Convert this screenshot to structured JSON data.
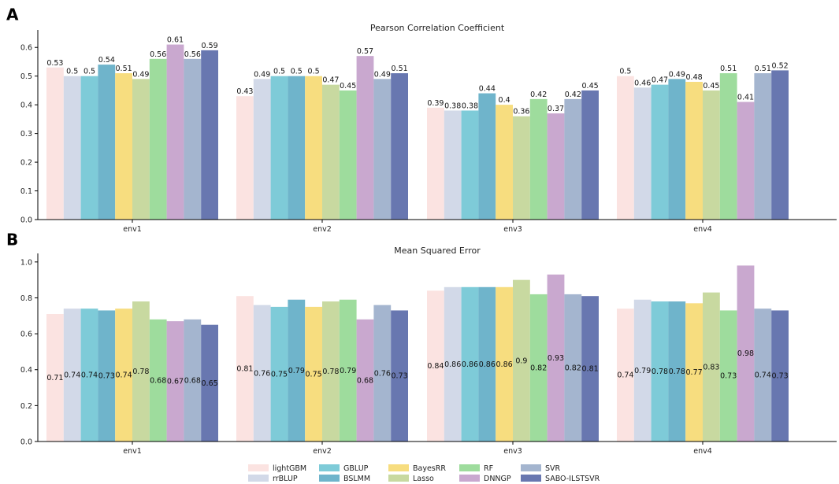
{
  "chart_data": [
    {
      "type": "bar",
      "panel_label": "A",
      "title": "Pearson Correlation Coefficient",
      "xlabel": "",
      "ylabel": "",
      "ylim": [
        0,
        0.65
      ],
      "yticks": [
        "0.0",
        "0.1",
        "0.2",
        "0.3",
        "0.4",
        "0.5",
        "0.6"
      ],
      "value_label_position": "top",
      "categories": [
        "env1",
        "env2",
        "env3",
        "env4"
      ],
      "series": [
        {
          "name": "lightGBM",
          "values": [
            0.53,
            0.43,
            0.39,
            0.5
          ],
          "labels": [
            "0.53",
            "0.43",
            "0.39",
            "0.5"
          ]
        },
        {
          "name": "rrBLUP",
          "values": [
            0.5,
            0.49,
            0.38,
            0.46
          ],
          "labels": [
            "0.5",
            "0.49",
            "0.38",
            "0.46"
          ]
        },
        {
          "name": "GBLUP",
          "values": [
            0.5,
            0.5,
            0.38,
            0.47
          ],
          "labels": [
            "0.5",
            "0.5",
            "0.38",
            "0.47"
          ]
        },
        {
          "name": "BSLMM",
          "values": [
            0.54,
            0.5,
            0.44,
            0.49
          ],
          "labels": [
            "0.54",
            "0.5",
            "0.44",
            "0.49"
          ]
        },
        {
          "name": "BayesRR",
          "values": [
            0.51,
            0.5,
            0.4,
            0.48
          ],
          "labels": [
            "0.51",
            "0.5",
            "0.4",
            "0.48"
          ]
        },
        {
          "name": "Lasso",
          "values": [
            0.49,
            0.47,
            0.36,
            0.45
          ],
          "labels": [
            "0.49",
            "0.47",
            "0.36",
            "0.45"
          ]
        },
        {
          "name": "RF",
          "values": [
            0.56,
            0.45,
            0.42,
            0.51
          ],
          "labels": [
            "0.56",
            "0.45",
            "0.42",
            "0.51"
          ]
        },
        {
          "name": "DNNGP",
          "values": [
            0.61,
            0.57,
            0.37,
            0.41
          ],
          "labels": [
            "0.61",
            "0.57",
            "0.37",
            "0.41"
          ]
        },
        {
          "name": "SVR",
          "values": [
            0.56,
            0.49,
            0.42,
            0.51
          ],
          "labels": [
            "0.56",
            "0.49",
            "0.42",
            "0.51"
          ]
        },
        {
          "name": "SABO-ILSTSVR",
          "values": [
            0.59,
            0.51,
            0.45,
            0.52
          ],
          "labels": [
            "0.59",
            "0.51",
            "0.45",
            "0.52"
          ]
        }
      ]
    },
    {
      "type": "bar",
      "panel_label": "B",
      "title": "Mean Squared Error",
      "xlabel": "",
      "ylabel": "",
      "ylim": [
        0,
        1.03
      ],
      "yticks": [
        "0.0",
        "0.2",
        "0.4",
        "0.6",
        "0.8",
        "1.0"
      ],
      "value_label_position": "middle",
      "categories": [
        "env1",
        "env2",
        "env3",
        "env4"
      ],
      "series": [
        {
          "name": "lightGBM",
          "values": [
            0.71,
            0.81,
            0.84,
            0.74
          ],
          "labels": [
            "0.71",
            "0.81",
            "0.84",
            "0.74"
          ]
        },
        {
          "name": "rrBLUP",
          "values": [
            0.74,
            0.76,
            0.86,
            0.79
          ],
          "labels": [
            "0.74",
            "0.76",
            "0.86",
            "0.79"
          ]
        },
        {
          "name": "GBLUP",
          "values": [
            0.74,
            0.75,
            0.86,
            0.78
          ],
          "labels": [
            "0.74",
            "0.75",
            "0.86",
            "0.78"
          ]
        },
        {
          "name": "BSLMM",
          "values": [
            0.73,
            0.79,
            0.86,
            0.78
          ],
          "labels": [
            "0.73",
            "0.79",
            "0.86",
            "0.78"
          ]
        },
        {
          "name": "BayesRR",
          "values": [
            0.74,
            0.75,
            0.86,
            0.77
          ],
          "labels": [
            "0.74",
            "0.75",
            "0.86",
            "0.77"
          ]
        },
        {
          "name": "Lasso",
          "values": [
            0.78,
            0.78,
            0.9,
            0.83
          ],
          "labels": [
            "0.78",
            "0.78",
            "0.9",
            "0.83"
          ]
        },
        {
          "name": "RF",
          "values": [
            0.68,
            0.79,
            0.82,
            0.73
          ],
          "labels": [
            "0.68",
            "0.79",
            "0.82",
            "0.73"
          ]
        },
        {
          "name": "DNNGP",
          "values": [
            0.67,
            0.68,
            0.93,
            0.98
          ],
          "labels": [
            "0.67",
            "0.68",
            "0.93",
            "0.98"
          ]
        },
        {
          "name": "SVR",
          "values": [
            0.68,
            0.76,
            0.82,
            0.74
          ],
          "labels": [
            "0.68",
            "0.76",
            "0.82",
            "0.74"
          ]
        },
        {
          "name": "SABO-ILSTSVR",
          "values": [
            0.65,
            0.73,
            0.81,
            0.73
          ],
          "labels": [
            "0.65",
            "0.73",
            "0.81",
            "0.73"
          ]
        }
      ]
    }
  ],
  "legend": {
    "placement": "bottom-center",
    "items": [
      "lightGBM",
      "rrBLUP",
      "GBLUP",
      "BSLMM",
      "BayesRR",
      "Lasso",
      "RF",
      "DNNGP",
      "SVR",
      "SABO-ILSTSVR"
    ]
  },
  "colors": {
    "lightGBM": "#fbe3e1",
    "rrBLUP": "#d2d9e8",
    "GBLUP": "#7ecbd8",
    "BSLMM": "#6fb4cb",
    "BayesRR": "#f7dd7f",
    "Lasso": "#c8d9a0",
    "RF": "#9edc9d",
    "DNNGP": "#c9a8cf",
    "SVR": "#a4b5cf",
    "SABO-ILSTSVR": "#6877b0"
  }
}
